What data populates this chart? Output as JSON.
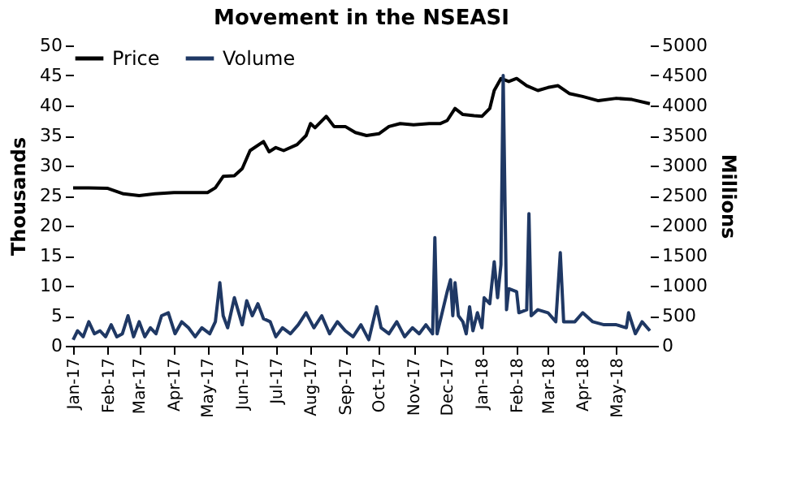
{
  "chart_data": {
    "type": "line",
    "title": "Movement in the NSEASI",
    "ylabel": "Thousands",
    "y2label": "Millions",
    "xlim": [
      "2017-01-01",
      "2018-05-31"
    ],
    "xticks": [
      {
        "value": "2017-01-01",
        "label": "Jan-17"
      },
      {
        "value": "2017-02-01",
        "label": "Feb-17"
      },
      {
        "value": "2017-03-01",
        "label": "Mar-17"
      },
      {
        "value": "2017-04-01",
        "label": "Apr-17"
      },
      {
        "value": "2017-05-01",
        "label": "May-17"
      },
      {
        "value": "2017-06-01",
        "label": "Jun-17"
      },
      {
        "value": "2017-07-01",
        "label": "Jul-17"
      },
      {
        "value": "2017-08-01",
        "label": "Aug-17"
      },
      {
        "value": "2017-09-01",
        "label": "Sep-17"
      },
      {
        "value": "2017-10-01",
        "label": "Oct-17"
      },
      {
        "value": "2017-11-01",
        "label": "Nov-17"
      },
      {
        "value": "2017-12-01",
        "label": "Dec-17"
      },
      {
        "value": "2018-01-01",
        "label": "Jan-18"
      },
      {
        "value": "2018-02-01",
        "label": "Feb-18"
      },
      {
        "value": "2018-03-01",
        "label": "Mar-18"
      },
      {
        "value": "2018-04-01",
        "label": "Apr-18"
      },
      {
        "value": "2018-05-01",
        "label": "May-18"
      }
    ],
    "ylim": [
      0,
      50
    ],
    "yticks": [
      0,
      5,
      10,
      15,
      20,
      25,
      30,
      35,
      40,
      45,
      50
    ],
    "y2lim": [
      0,
      5000
    ],
    "y2ticks": [
      0,
      500,
      1000,
      1500,
      2000,
      2500,
      3000,
      3500,
      4000,
      4500,
      5000
    ],
    "grid": false,
    "legend": "top",
    "marker": "none",
    "line_style": "solid",
    "series": [
      {
        "name": "Price",
        "color": "#000000",
        "x": [
          "2017-01-01",
          "2017-01-15",
          "2017-02-01",
          "2017-02-15",
          "2017-03-01",
          "2017-03-15",
          "2017-04-01",
          "2017-04-15",
          "2017-05-01",
          "2017-05-08",
          "2017-05-15",
          "2017-05-25",
          "2017-06-01",
          "2017-06-08",
          "2017-06-20",
          "2017-06-25",
          "2017-07-01",
          "2017-07-08",
          "2017-07-20",
          "2017-07-28",
          "2017-08-01",
          "2017-08-05",
          "2017-08-15",
          "2017-08-22",
          "2017-09-01",
          "2017-09-10",
          "2017-09-20",
          "2017-10-01",
          "2017-10-10",
          "2017-10-20",
          "2017-11-01",
          "2017-11-15",
          "2017-11-25",
          "2017-12-01",
          "2017-12-08",
          "2017-12-15",
          "2017-12-25",
          "2018-01-01",
          "2018-01-08",
          "2018-01-12",
          "2018-01-18",
          "2018-01-25",
          "2018-02-01",
          "2018-02-10",
          "2018-02-20",
          "2018-03-01",
          "2018-03-10",
          "2018-03-20",
          "2018-04-01",
          "2018-04-15",
          "2018-05-01",
          "2018-05-15",
          "2018-05-31"
        ],
        "values": [
          26.3,
          26.3,
          26.2,
          25.3,
          25.0,
          25.3,
          25.5,
          25.5,
          25.5,
          26.3,
          28.2,
          28.3,
          29.5,
          32.5,
          34,
          32.3,
          33,
          32.5,
          33.5,
          35,
          37,
          36.3,
          38.2,
          36.5,
          36.5,
          35.5,
          35,
          35.3,
          36.5,
          37,
          36.8,
          37,
          37,
          37.5,
          39.5,
          38.5,
          38.3,
          38.2,
          39.5,
          42.5,
          44.5,
          44.0,
          44.5,
          43.3,
          42.5,
          43,
          43.3,
          42,
          41.5,
          40.8,
          41.2,
          41,
          40.3
        ]
      },
      {
        "name": "Volume",
        "color": "#1f3864",
        "axis": "y2",
        "x": [
          "2017-01-01",
          "2017-01-05",
          "2017-01-10",
          "2017-01-15",
          "2017-01-20",
          "2017-01-25",
          "2017-01-30",
          "2017-02-04",
          "2017-02-09",
          "2017-02-14",
          "2017-02-19",
          "2017-02-24",
          "2017-03-01",
          "2017-03-06",
          "2017-03-11",
          "2017-03-16",
          "2017-03-21",
          "2017-03-27",
          "2017-04-02",
          "2017-04-08",
          "2017-04-14",
          "2017-04-20",
          "2017-04-26",
          "2017-05-03",
          "2017-05-08",
          "2017-05-12",
          "2017-05-15",
          "2017-05-19",
          "2017-05-25",
          "2017-06-01",
          "2017-06-05",
          "2017-06-10",
          "2017-06-15",
          "2017-06-20",
          "2017-06-26",
          "2017-07-01",
          "2017-07-07",
          "2017-07-14",
          "2017-07-21",
          "2017-07-28",
          "2017-08-04",
          "2017-08-11",
          "2017-08-18",
          "2017-08-25",
          "2017-09-01",
          "2017-09-08",
          "2017-09-15",
          "2017-09-22",
          "2017-09-29",
          "2017-10-03",
          "2017-10-10",
          "2017-10-17",
          "2017-10-24",
          "2017-10-31",
          "2017-11-06",
          "2017-11-12",
          "2017-11-18",
          "2017-11-20",
          "2017-11-22",
          "2017-12-01",
          "2017-12-04",
          "2017-12-06",
          "2017-12-08",
          "2017-12-11",
          "2017-12-15",
          "2017-12-18",
          "2017-12-21",
          "2017-12-24",
          "2017-12-28",
          "2018-01-01",
          "2018-01-03",
          "2018-01-08",
          "2018-01-12",
          "2018-01-15",
          "2018-01-18",
          "2018-01-20",
          "2018-01-23",
          "2018-01-25",
          "2018-02-01",
          "2018-02-03",
          "2018-02-10",
          "2018-02-12",
          "2018-02-14",
          "2018-02-20",
          "2018-03-01",
          "2018-03-08",
          "2018-03-12",
          "2018-03-15",
          "2018-03-25",
          "2018-04-01",
          "2018-04-10",
          "2018-04-20",
          "2018-05-01",
          "2018-05-10",
          "2018-05-12",
          "2018-05-18",
          "2018-05-24",
          "2018-05-31"
        ],
        "values": [
          100,
          250,
          150,
          400,
          200,
          250,
          150,
          350,
          150,
          200,
          500,
          150,
          400,
          150,
          300,
          200,
          500,
          550,
          200,
          400,
          300,
          150,
          300,
          200,
          400,
          1050,
          500,
          300,
          800,
          350,
          750,
          500,
          700,
          450,
          400,
          150,
          300,
          200,
          350,
          550,
          300,
          500,
          200,
          400,
          250,
          150,
          350,
          100,
          650,
          300,
          200,
          400,
          150,
          300,
          200,
          350,
          200,
          1800,
          200,
          900,
          1100,
          500,
          1050,
          500,
          400,
          200,
          650,
          250,
          550,
          300,
          800,
          700,
          1400,
          800,
          1350,
          4500,
          600,
          950,
          900,
          550,
          600,
          2200,
          500,
          600,
          550,
          400,
          1550,
          400,
          400,
          550,
          400,
          350,
          350,
          300,
          550,
          200,
          400,
          250
        ]
      }
    ]
  }
}
